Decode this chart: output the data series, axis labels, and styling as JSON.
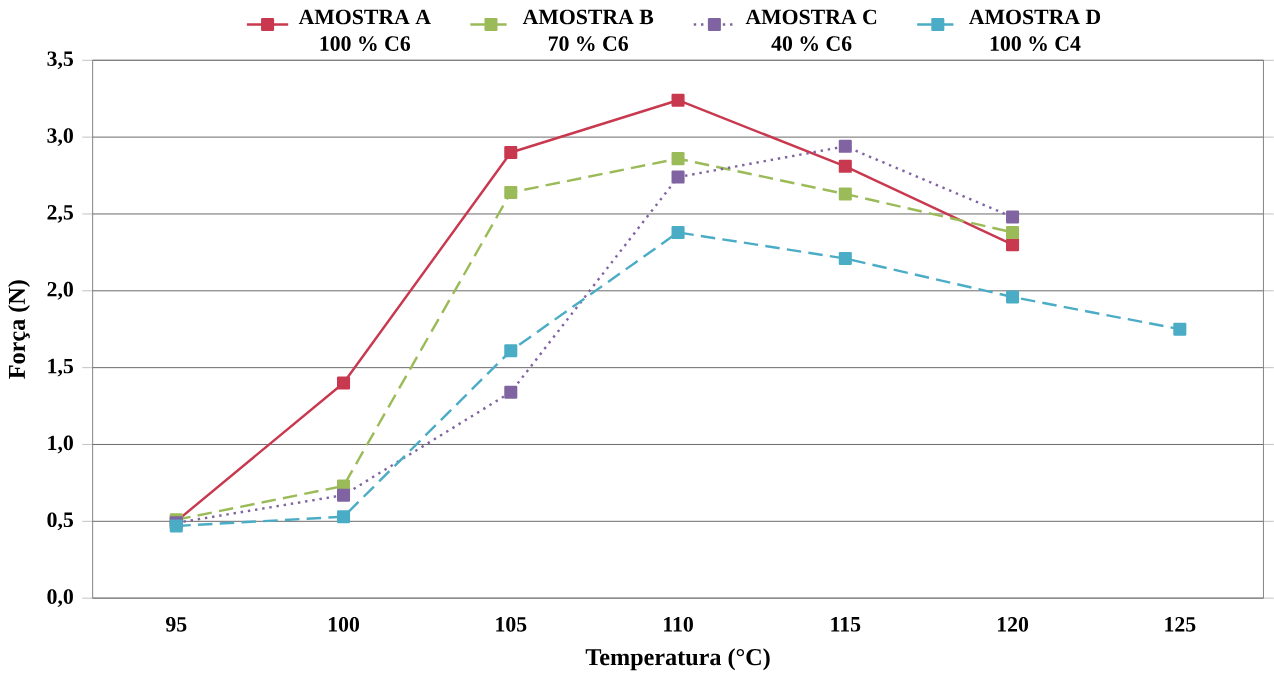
{
  "chart_data": {
    "type": "line",
    "xlabel": "Temperatura (°C)",
    "ylabel": "Força (N)",
    "categories": [
      "95",
      "100",
      "105",
      "110",
      "115",
      "120",
      "125"
    ],
    "series": [
      {
        "name": "AMOSTRA A 100 % C6",
        "color": "#c8384e",
        "line_style": "solid",
        "values": [
          0.5,
          1.4,
          2.9,
          3.24,
          2.81,
          2.3,
          null
        ]
      },
      {
        "name": "AMOSTRA B 70 % C6",
        "color": "#9bbb59",
        "line_style": "dashed",
        "values": [
          0.51,
          0.73,
          2.64,
          2.86,
          2.63,
          2.38,
          null
        ]
      },
      {
        "name": "AMOSTRA C 40 % C6",
        "color": "#8064a2",
        "line_style": "dotted",
        "values": [
          0.49,
          0.67,
          1.34,
          2.74,
          2.94,
          2.48,
          null
        ]
      },
      {
        "name": "AMOSTRA D 100 % C4",
        "color": "#4bacc6",
        "line_style": "dashed",
        "values": [
          0.47,
          0.53,
          1.61,
          2.38,
          2.21,
          1.96,
          1.75
        ]
      }
    ],
    "ylim": [
      0,
      3.5
    ],
    "yticks": [
      {
        "value": 0,
        "label": "0,0"
      },
      {
        "value": 0.5,
        "label": "0,5"
      },
      {
        "value": 1,
        "label": "1,0"
      },
      {
        "value": 1.5,
        "label": "1,5"
      },
      {
        "value": 2,
        "label": "2,0"
      },
      {
        "value": 2.5,
        "label": "2,5"
      },
      {
        "value": 3,
        "label": "3,0"
      },
      {
        "value": 3.5,
        "label": "3,5"
      }
    ],
    "grid": "y",
    "legend": "top",
    "marker": "square"
  }
}
